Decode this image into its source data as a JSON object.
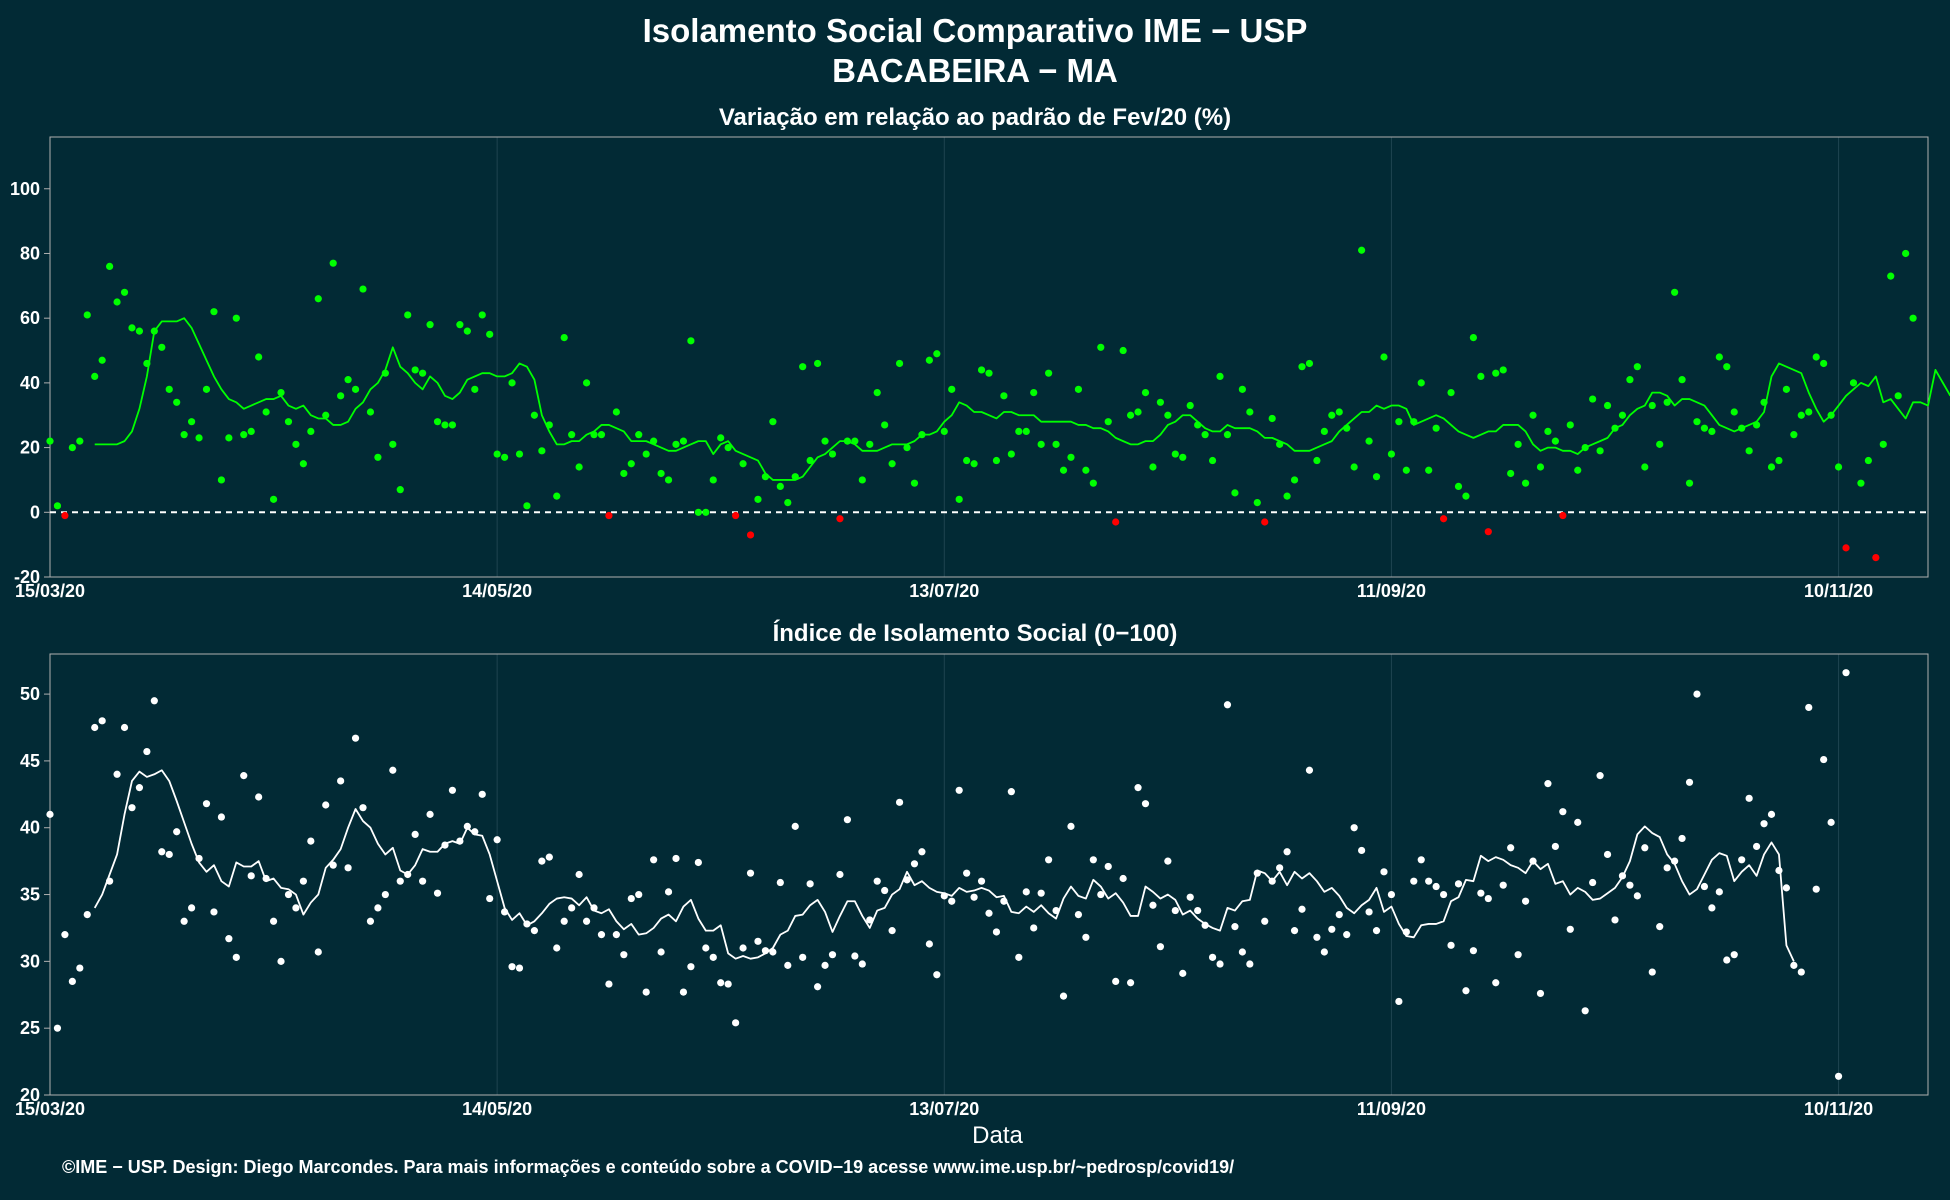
{
  "header": {
    "title": "Isolamento Social Comparativo IME − USP",
    "subtitle": "BACABEIRA − MA"
  },
  "footer": {
    "xlabel": "Data",
    "caption": "©IME − USP. Design: Diego Marcondes. Para mais informações e conteúdo sobre a COVID−19 acesse www.ime.usp.br/~pedrosp/covid19/"
  },
  "colors": {
    "background": "#022a35",
    "positive": "#00ff00",
    "negative": "#ff0000",
    "index": "#ffffff",
    "grid": "#1f4450",
    "frame": "#b0b0b0"
  },
  "chart_data": [
    {
      "type": "scatter",
      "title": "Variação em relação ao padrão de Fev/20 (%)",
      "xlabel": "Data",
      "ylabel": "",
      "x_start": "15/03/20",
      "x_ticks": [
        "15/03/20",
        "14/05/20",
        "13/07/20",
        "11/09/20",
        "10/11/20"
      ],
      "tick_day_index": [
        0,
        60,
        120,
        180,
        240
      ],
      "xlim_days": [
        0,
        252
      ],
      "ylim": [
        -20,
        116
      ],
      "yticks": [
        -20,
        0,
        20,
        40,
        60,
        80,
        100
      ],
      "reference_line": 0,
      "grid": true,
      "points": [
        22,
        2,
        -1,
        20,
        22,
        61,
        42,
        47,
        76,
        65,
        68,
        57,
        56,
        46,
        56,
        51,
        38,
        34,
        24,
        28,
        23,
        38,
        62,
        10,
        23,
        60,
        24,
        25,
        48,
        31,
        4,
        37,
        28,
        21,
        15,
        25,
        66,
        30,
        77,
        36,
        41,
        38,
        69,
        31,
        17,
        43,
        21,
        7,
        61,
        44,
        43,
        58,
        28,
        27,
        27,
        58,
        56,
        38,
        61,
        55,
        18,
        17,
        40,
        18,
        2,
        30,
        19,
        27,
        5,
        54,
        24,
        14,
        40,
        24,
        24,
        -1,
        31,
        12,
        15,
        24,
        18,
        22,
        12,
        10,
        21,
        22,
        53,
        0,
        0,
        10,
        23,
        20,
        -1,
        15,
        -7,
        4,
        11,
        28,
        8,
        3,
        11,
        45,
        16,
        46,
        22,
        18,
        -2,
        22,
        22,
        10,
        21,
        37,
        27,
        15,
        46,
        20,
        9,
        24,
        47,
        49,
        25,
        38,
        4,
        16,
        15,
        44,
        43,
        16,
        36,
        18,
        25,
        25,
        37,
        21,
        43,
        21,
        13,
        17,
        38,
        13,
        9,
        51,
        28,
        -3,
        50,
        30,
        31,
        37,
        14,
        34,
        30,
        18,
        17,
        33,
        27,
        24,
        16,
        42,
        24,
        6,
        38,
        31,
        3,
        -3,
        29,
        21,
        5,
        10,
        45,
        46,
        16,
        25,
        30,
        31,
        26,
        14,
        81,
        22,
        11,
        48,
        18,
        28,
        13,
        28,
        40,
        13,
        26,
        -2,
        37,
        8,
        5,
        54,
        42,
        -6,
        43,
        44,
        12,
        21,
        9,
        30,
        14,
        25,
        22,
        -1,
        27,
        13,
        20,
        35,
        19,
        33,
        26,
        30,
        41,
        45,
        14,
        33,
        21,
        34,
        68,
        41,
        9,
        28,
        26,
        25,
        48,
        45,
        31,
        26,
        19,
        27,
        34,
        14,
        16,
        38,
        24,
        30,
        31,
        48,
        46,
        30,
        14,
        -11,
        40,
        9,
        16,
        -14,
        21,
        73,
        36,
        80,
        60
      ],
      "rolling_mean": [
        21,
        21,
        21,
        21,
        22,
        25,
        32,
        42,
        56,
        59,
        59,
        59,
        60,
        57,
        52,
        47,
        42,
        38,
        35,
        34,
        32,
        33,
        34,
        35,
        35,
        36,
        33,
        32,
        33,
        30,
        29,
        29,
        27,
        27,
        28,
        32,
        34,
        38,
        40,
        44,
        51,
        45,
        43,
        40,
        38,
        42,
        40,
        36,
        35,
        37,
        41,
        42,
        43,
        43,
        42,
        42,
        43,
        46,
        45,
        41,
        30,
        25,
        21,
        21,
        22,
        22,
        24,
        25,
        27,
        27,
        26,
        25,
        22,
        22,
        22,
        21,
        20,
        19,
        19,
        20,
        21,
        22,
        22,
        18,
        21,
        22,
        19,
        18,
        17,
        16,
        12,
        10,
        10,
        10,
        10,
        11,
        14,
        17,
        18,
        20,
        22,
        22,
        21,
        19,
        19,
        19,
        20,
        21,
        21,
        21,
        22,
        24,
        24,
        25,
        28,
        30,
        34,
        33,
        31,
        31,
        30,
        29,
        31,
        31,
        30,
        30,
        30,
        28,
        28,
        28,
        28,
        28,
        27,
        27,
        26,
        26,
        25,
        23,
        22,
        21,
        21,
        22,
        22,
        24,
        27,
        28,
        30,
        30,
        28,
        26,
        25,
        25,
        27,
        26,
        26,
        26,
        25,
        23,
        23,
        22,
        21,
        19,
        19,
        19,
        20,
        21,
        22,
        25,
        27,
        29,
        31,
        31,
        33,
        32,
        33,
        33,
        32,
        27,
        28,
        29,
        30,
        29,
        27,
        25,
        24,
        23,
        24,
        25,
        25,
        27,
        27,
        27,
        25,
        21,
        19,
        20,
        20,
        19,
        19,
        18,
        20,
        21,
        22,
        23,
        26,
        27,
        30,
        32,
        33,
        37,
        37,
        36,
        33,
        35,
        35,
        34,
        33,
        30,
        27,
        26,
        25,
        26,
        27,
        28,
        31,
        42,
        46,
        45,
        44,
        43,
        37,
        32,
        28,
        30,
        33,
        36,
        38,
        40,
        39,
        42,
        34,
        35,
        32,
        29,
        34,
        34,
        33,
        44,
        40,
        36
      ]
    },
    {
      "type": "scatter",
      "title": "Índice de Isolamento Social (0−100)",
      "xlabel": "Data",
      "ylabel": "",
      "x_start": "15/03/20",
      "x_ticks": [
        "15/03/20",
        "14/05/20",
        "13/07/20",
        "11/09/20",
        "10/11/20"
      ],
      "tick_day_index": [
        0,
        60,
        120,
        180,
        240
      ],
      "xlim_days": [
        0,
        252
      ],
      "ylim": [
        20,
        53
      ],
      "yticks": [
        20,
        25,
        30,
        35,
        40,
        45,
        50
      ],
      "grid": true,
      "points": [
        41,
        25,
        32,
        28.5,
        29.5,
        33.5,
        47.5,
        48,
        36,
        44,
        47.5,
        41.5,
        43,
        45.7,
        49.5,
        38.2,
        38,
        39.7,
        33,
        34,
        37.7,
        41.8,
        33.7,
        40.8,
        31.7,
        30.3,
        43.9,
        36.4,
        42.3,
        36.2,
        33,
        30,
        35,
        34,
        36,
        39,
        30.7,
        41.7,
        37.2,
        43.5,
        37,
        46.7,
        41.5,
        33,
        34,
        35,
        44.3,
        36,
        36.5,
        39.5,
        36,
        41,
        35.1,
        38.7,
        42.8,
        39,
        40.1,
        39.7,
        42.5,
        34.7,
        39.1,
        33.7,
        29.6,
        29.5,
        32.8,
        32.3,
        37.5,
        37.8,
        31,
        33,
        34,
        36.5,
        33,
        34,
        32,
        28.3,
        32,
        30.5,
        34.7,
        35,
        27.7,
        37.6,
        30.7,
        35.2,
        37.7,
        27.7,
        29.6,
        37.4,
        31,
        30.3,
        28.4,
        28.3,
        25.4,
        31,
        36.6,
        31.5,
        30.8,
        30.7,
        35.9,
        29.7,
        40.1,
        30.3,
        35.8,
        28.1,
        29.7,
        30.5,
        36.5,
        40.6,
        30.4,
        29.8,
        33.1,
        36,
        35.3,
        32.3,
        41.9,
        36.1,
        37.3,
        38.2,
        31.3,
        29,
        34.9,
        34.5,
        42.8,
        36.6,
        34.8,
        36,
        33.6,
        32.2,
        34.5,
        42.7,
        30.3,
        35.2,
        32.5,
        35.1,
        37.6,
        33.8,
        27.4,
        40.1,
        33.5,
        31.8,
        37.6,
        35,
        37.1,
        28.5,
        36.2,
        28.4,
        43,
        41.8,
        34.2,
        31.1,
        37.5,
        33.8,
        29.1,
        34.8,
        33.8,
        32.7,
        30.3,
        29.8,
        49.2,
        32.6,
        30.7,
        29.8,
        36.6,
        33,
        36,
        37,
        38.2,
        32.3,
        33.9,
        44.3,
        31.8,
        30.7,
        32.4,
        33.5,
        32,
        40,
        38.3,
        33.7,
        32.3,
        36.7,
        35,
        27,
        32.2,
        36,
        37.6,
        36,
        35.6,
        35,
        31.2,
        35.8,
        27.8,
        30.8,
        35.1,
        34.7,
        28.4,
        35.7,
        38.5,
        30.5,
        34.5,
        37.5,
        27.6,
        43.3,
        38.6,
        41.2,
        32.4,
        40.4,
        26.3,
        35.9,
        43.9,
        38,
        33.1,
        36.4,
        35.7,
        34.9,
        38.5,
        29.2,
        32.6,
        37,
        37.5,
        39.2,
        43.4,
        50,
        35.6,
        34,
        35.2,
        30.1,
        30.5,
        37.6,
        42.2,
        38.6,
        40.3,
        41,
        36.8,
        35.5,
        29.7,
        29.2,
        49,
        35.4,
        45.1,
        40.4,
        21.4,
        51.6
      ],
      "rolling_mean": [
        34,
        35,
        36.5,
        38,
        41,
        43.5,
        44.2,
        43.8,
        44,
        44.3,
        43.5,
        42,
        40.4,
        38.8,
        37.4,
        36.7,
        37.2,
        36,
        35.6,
        37.4,
        37.1,
        37.1,
        37.5,
        36,
        36.2,
        35.5,
        35.4,
        35,
        33.5,
        34.4,
        35,
        37,
        37.6,
        38.4,
        40,
        41.4,
        40.5,
        40,
        38.8,
        38,
        38.5,
        36.8,
        36.5,
        37.2,
        38.4,
        38.2,
        38.2,
        38.8,
        39,
        38.8,
        40,
        39.5,
        39.4,
        38,
        36,
        34,
        33.1,
        33.6,
        32.7,
        33,
        33.6,
        34.3,
        34.7,
        34.8,
        34.7,
        34.2,
        34.8,
        33.8,
        33.6,
        33.9,
        33,
        32.4,
        32.8,
        32,
        32.1,
        32.5,
        33.2,
        33.5,
        33,
        34.1,
        34.6,
        33.2,
        32.3,
        32.3,
        32.7,
        30.6,
        30.2,
        30.4,
        30.2,
        30.3,
        30.6,
        31,
        32,
        32.3,
        33.4,
        33.5,
        34.2,
        34.6,
        33.7,
        32.2,
        33.4,
        34.5,
        34.5,
        33.4,
        32.5,
        33.8,
        34,
        35,
        35.4,
        36.7,
        35.7,
        36,
        35.5,
        35.2,
        35.1,
        34.9,
        35.5,
        35.2,
        35.3,
        35.5,
        35.3,
        34.8,
        34.9,
        33.7,
        33.6,
        34.1,
        33.7,
        34.2,
        33.6,
        33.2,
        34.7,
        35.6,
        34.9,
        34.7,
        36.1,
        35.6,
        34.7,
        35.1,
        34.4,
        33.4,
        33.4,
        35.6,
        35.2,
        34.7,
        35,
        34.6,
        33.5,
        33.8,
        33.2,
        32.8,
        32.5,
        32.3,
        34,
        33.8,
        34.5,
        34.6,
        36.8,
        36.6,
        36,
        36.7,
        35.7,
        36.7,
        36.2,
        36.6,
        36,
        35.2,
        35.5,
        34.9,
        34,
        33.6,
        34.2,
        34.6,
        35.5,
        33.7,
        34.1,
        32.8,
        31.9,
        31.8,
        32.7,
        32.8,
        32.8,
        33,
        34.5,
        34.8,
        36.1,
        36,
        37.9,
        37.5,
        37.8,
        37.6,
        37.2,
        37,
        36.6,
        37.5,
        36.9,
        37.3,
        35.8,
        36,
        35,
        35.5,
        35.2,
        34.6,
        34.7,
        35.1,
        35.5,
        36.3,
        37.5,
        39.5,
        40.1,
        39.6,
        39.3,
        38,
        37.3,
        36,
        35,
        35.4,
        36.5,
        37.6,
        38.1,
        37.9,
        36,
        36.7,
        37.2,
        36.4,
        38,
        38.9,
        38,
        31.2,
        30
      ]
    }
  ]
}
